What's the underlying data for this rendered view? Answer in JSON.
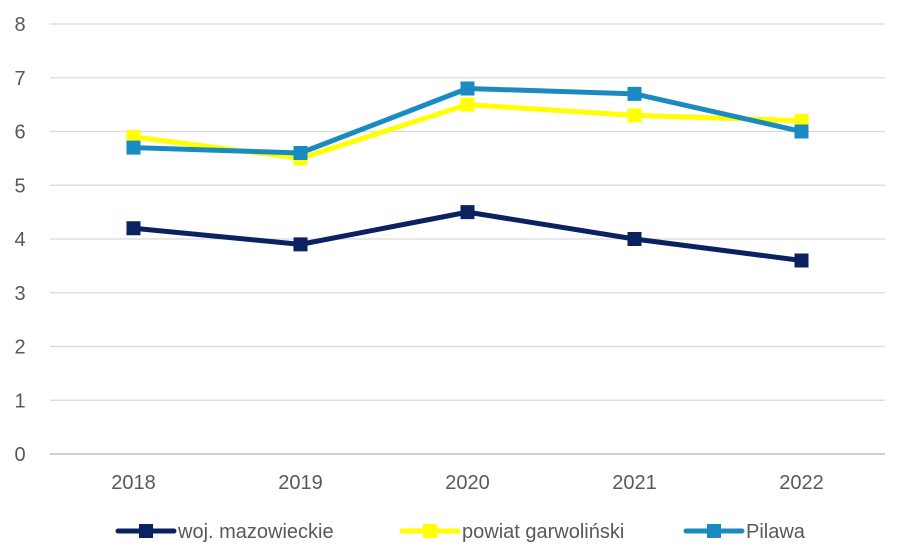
{
  "chart_data": {
    "type": "line",
    "title": "",
    "xlabel": "",
    "ylabel": "",
    "categories": [
      "2018",
      "2019",
      "2020",
      "2021",
      "2022"
    ],
    "ylim": [
      0,
      8
    ],
    "yticks": [
      "0",
      "1",
      "2",
      "3",
      "4",
      "5",
      "6",
      "7",
      "8"
    ],
    "grid": true,
    "legend_position": "bottom",
    "series": [
      {
        "name": "woj. mazowieckie",
        "color": "#0a2260",
        "values": [
          4.2,
          3.9,
          4.5,
          4.0,
          3.6
        ]
      },
      {
        "name": "powiat garwoliński",
        "color": "#ffff00",
        "values": [
          5.9,
          5.5,
          6.5,
          6.3,
          6.2
        ]
      },
      {
        "name": "Pilawa",
        "color": "#1a8bc0",
        "values": [
          5.7,
          5.6,
          6.8,
          6.7,
          6.0
        ]
      }
    ]
  }
}
